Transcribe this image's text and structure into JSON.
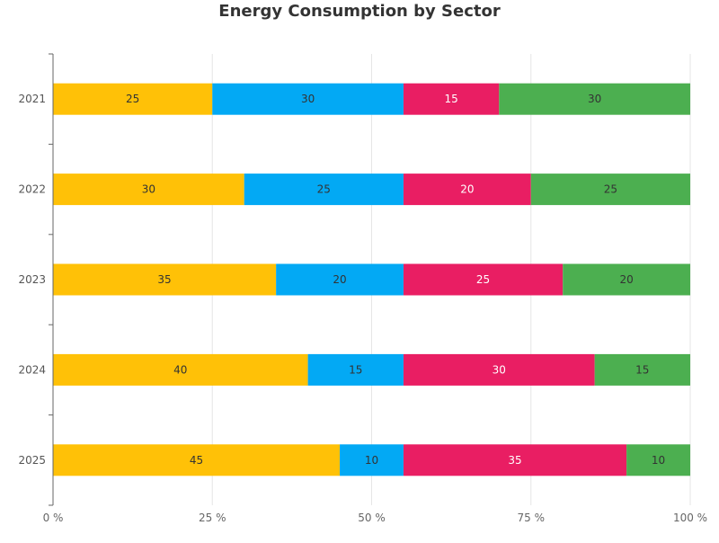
{
  "chart_data": {
    "type": "bar",
    "orientation": "horizontal",
    "stacked": "percent",
    "title": "Energy Consumption by Sector",
    "categories": [
      "2021",
      "2022",
      "2023",
      "2024",
      "2025"
    ],
    "series": [
      {
        "values": [
          25,
          30,
          35,
          40,
          45
        ],
        "color": "#FFC107",
        "label_color": "#333333"
      },
      {
        "values": [
          30,
          25,
          20,
          15,
          10
        ],
        "color": "#03A9F4",
        "label_color": "#333333"
      },
      {
        "values": [
          15,
          20,
          25,
          30,
          35
        ],
        "color": "#E91E63",
        "label_color": "#FFFFFF"
      },
      {
        "values": [
          30,
          25,
          20,
          15,
          10
        ],
        "color": "#4CAF50",
        "label_color": "#333333"
      }
    ],
    "x_ticks": [
      "0 %",
      "25 %",
      "50 %",
      "75 %",
      "100 %"
    ],
    "xlim": [
      0,
      100
    ],
    "grid": true,
    "legend": "none",
    "xlabel": "",
    "ylabel": ""
  }
}
